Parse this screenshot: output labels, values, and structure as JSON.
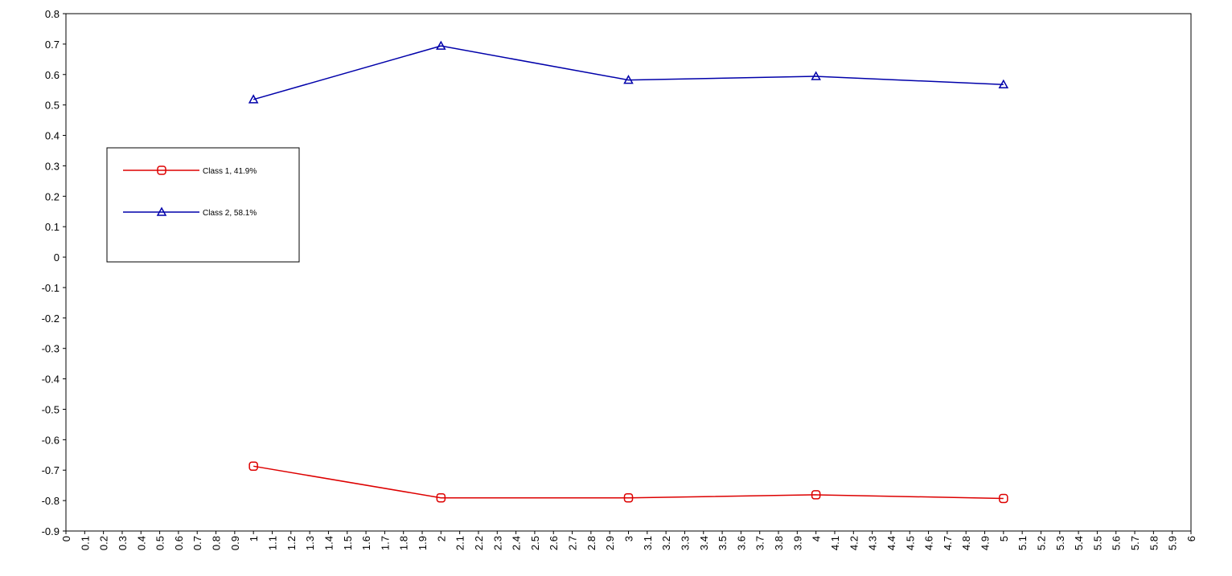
{
  "chart_data": {
    "type": "line",
    "series": [
      {
        "name": "Class 1, 41.9%",
        "color": "#dd0000",
        "marker": "square",
        "x": [
          1,
          2,
          3,
          4,
          5
        ],
        "values": [
          -0.687,
          -0.791,
          -0.791,
          -0.781,
          -0.793
        ]
      },
      {
        "name": "Class 2, 58.1%",
        "color": "#0000aa",
        "marker": "triangle",
        "x": [
          1,
          2,
          3,
          4,
          5
        ],
        "values": [
          0.518,
          0.694,
          0.582,
          0.594,
          0.567
        ]
      }
    ],
    "xlim": [
      0,
      6
    ],
    "xticks": [
      0,
      0.1,
      0.2,
      0.3,
      0.4,
      0.5,
      0.6,
      0.7,
      0.8,
      0.9,
      1,
      1.1,
      1.2,
      1.3,
      1.4,
      1.5,
      1.6,
      1.7,
      1.8,
      1.9,
      2,
      2.1,
      2.2,
      2.3,
      2.4,
      2.5,
      2.6,
      2.7,
      2.8,
      2.9,
      3,
      3.1,
      3.2,
      3.3,
      3.4,
      3.5,
      3.6,
      3.7,
      3.8,
      3.9,
      4,
      4.1,
      4.2,
      4.3,
      4.4,
      4.5,
      4.6,
      4.7,
      4.8,
      4.9,
      5,
      5.1,
      5.2,
      5.3,
      5.4,
      5.5,
      5.6,
      5.7,
      5.8,
      5.9,
      6
    ],
    "ylim": [
      -0.9,
      0.8
    ],
    "yticks": [
      -0.9,
      -0.8,
      -0.7,
      -0.6,
      -0.5,
      -0.4,
      -0.3,
      -0.2,
      -0.1,
      0,
      0.1,
      0.2,
      0.3,
      0.4,
      0.5,
      0.6,
      0.7,
      0.8
    ],
    "legend": "upper left"
  }
}
